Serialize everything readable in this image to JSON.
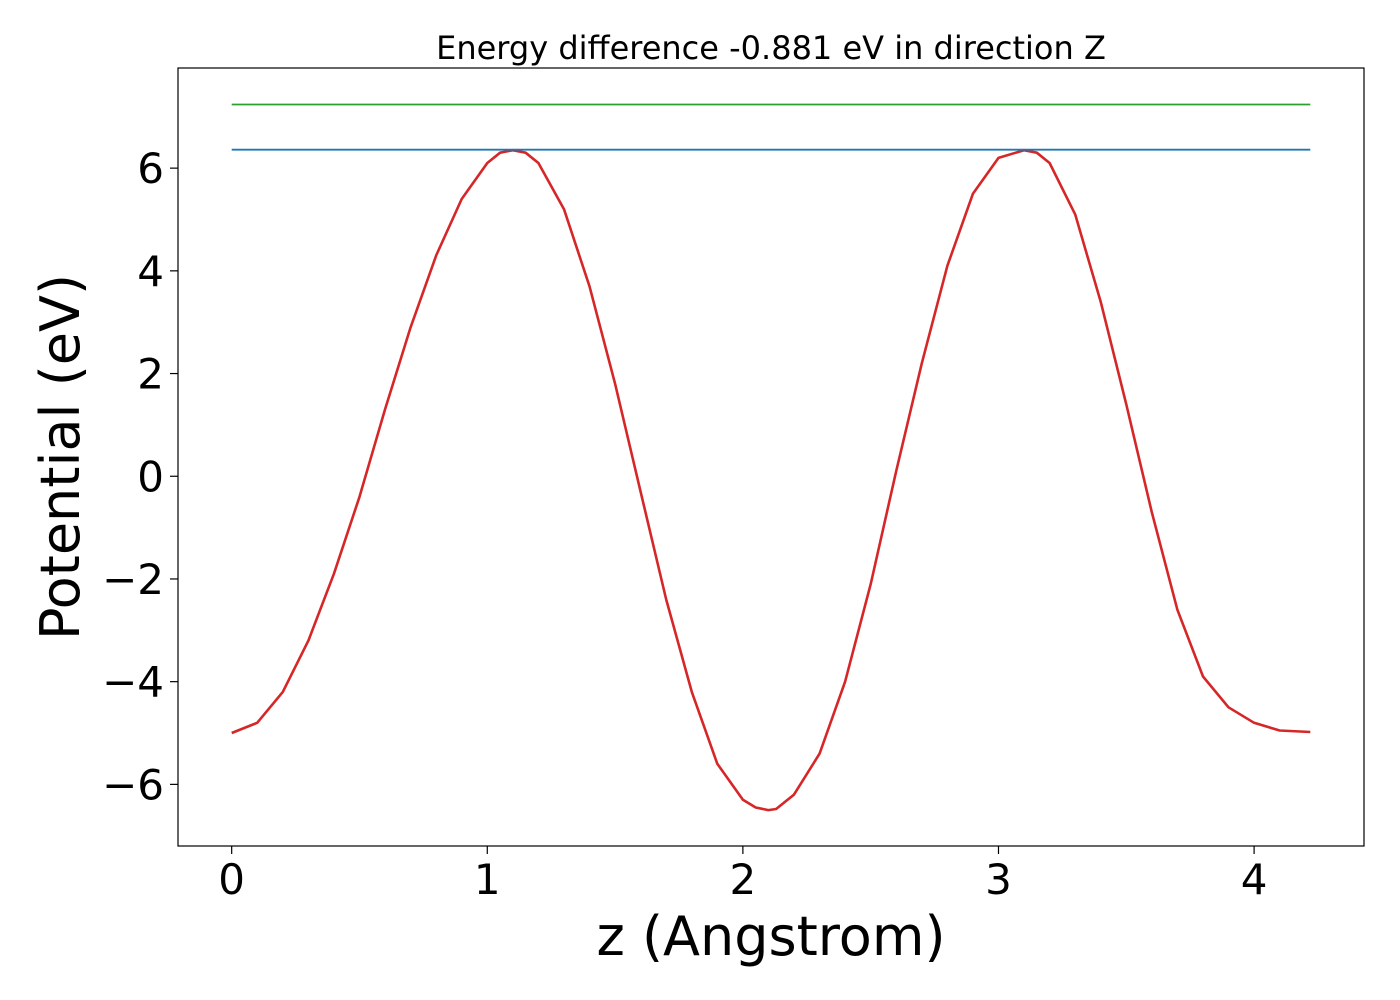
{
  "chart_data": {
    "type": "line",
    "title": "Energy difference -0.881 eV in direction Z",
    "xlabel": "z (Angstrom)",
    "ylabel": "Potential (eV)",
    "xlim": [
      -0.21,
      4.43
    ],
    "ylim": [
      -7.2,
      7.95
    ],
    "xticks": [
      0,
      1,
      2,
      3,
      4
    ],
    "xtick_labels": [
      "0",
      "1",
      "2",
      "3",
      "4"
    ],
    "yticks": [
      -6,
      -4,
      -2,
      0,
      2,
      4,
      6
    ],
    "ytick_labels": [
      "−6",
      "−4",
      "−2",
      "0",
      "2",
      "4",
      "6"
    ],
    "grid": false,
    "series": [
      {
        "color": "#d62728",
        "x": [
          0.0,
          0.1,
          0.2,
          0.3,
          0.4,
          0.5,
          0.6,
          0.7,
          0.8,
          0.9,
          1.0,
          1.05,
          1.1,
          1.15,
          1.2,
          1.3,
          1.4,
          1.5,
          1.6,
          1.7,
          1.8,
          1.9,
          2.0,
          2.05,
          2.1,
          2.13,
          2.2,
          2.3,
          2.4,
          2.5,
          2.6,
          2.7,
          2.8,
          2.9,
          3.0,
          3.1,
          3.15,
          3.2,
          3.3,
          3.4,
          3.5,
          3.6,
          3.7,
          3.8,
          3.9,
          4.0,
          4.1,
          4.22
        ],
        "y": [
          -5.0,
          -4.8,
          -4.2,
          -3.2,
          -1.9,
          -0.4,
          1.3,
          2.9,
          4.3,
          5.4,
          6.1,
          6.3,
          6.35,
          6.3,
          6.1,
          5.2,
          3.7,
          1.8,
          -0.3,
          -2.4,
          -4.2,
          -5.6,
          -6.3,
          -6.45,
          -6.5,
          -6.48,
          -6.2,
          -5.4,
          -4.0,
          -2.1,
          0.1,
          2.2,
          4.1,
          5.5,
          6.2,
          6.35,
          6.3,
          6.1,
          5.1,
          3.4,
          1.4,
          -0.7,
          -2.6,
          -3.9,
          -4.5,
          -4.8,
          -4.95,
          -4.98
        ]
      },
      {
        "color": "#1f77b4",
        "x": [
          0.0,
          4.22
        ],
        "y": [
          6.36,
          6.36
        ]
      },
      {
        "color": "#2ca02c",
        "x": [
          0.0,
          4.22
        ],
        "y": [
          7.24,
          7.24
        ]
      }
    ]
  }
}
